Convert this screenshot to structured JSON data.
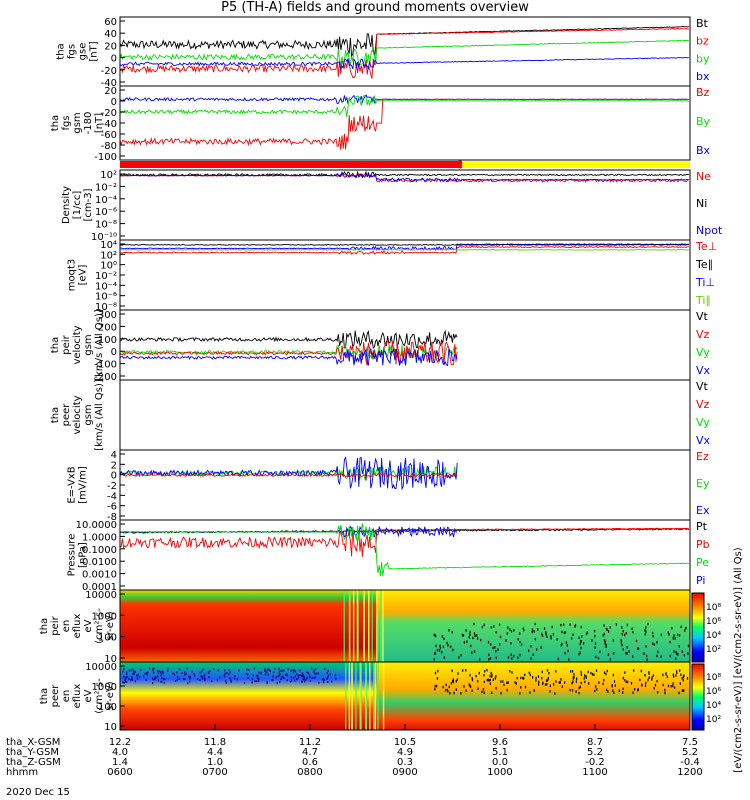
{
  "title": "P5 (TH-A) fields and ground moments overview",
  "colors": {
    "black": "#000000",
    "red": "#ff0000",
    "green": "#00e000",
    "blue": "#0000ff",
    "yellow": "#ffff00",
    "lightgreen": "#66cc00"
  },
  "panels": [
    {
      "id": "fgs_gse",
      "ylabel": [
        "tha",
        "fgs",
        "gse",
        "[nT]"
      ],
      "ticks": [
        "60",
        "40",
        "20",
        "0",
        "-20",
        "-40"
      ],
      "yrange": [
        -40,
        60
      ],
      "legend": [
        {
          "t": "Bt",
          "c": "black"
        },
        {
          "t": "bz",
          "c": "red"
        },
        {
          "t": "by",
          "c": "green"
        },
        {
          "t": "bx",
          "c": "blue"
        }
      ]
    },
    {
      "id": "fgs_gsm",
      "ylabel": [
        "tha",
        "fgs",
        "gsm",
        "-180",
        "[nT]"
      ],
      "ticks": [
        "20",
        "0",
        "-20",
        "-40",
        "-60",
        "-80",
        "-100"
      ],
      "yrange": [
        -100,
        20
      ],
      "legend": [
        {
          "t": "Bz",
          "c": "red"
        },
        {
          "t": "By",
          "c": "green"
        },
        {
          "t": "Bx",
          "c": "blue"
        }
      ]
    },
    {
      "id": "density",
      "ylabel": [
        "Density",
        "[1/cc]",
        "[cm-3]"
      ],
      "ticks": [
        "10²",
        "10⁻²",
        "10⁻⁴",
        "10⁻⁶",
        "10⁻⁸",
        "10⁻¹⁰"
      ],
      "yrange": [
        -10,
        2
      ],
      "legend": [
        {
          "t": "Ne",
          "c": "red"
        },
        {
          "t": "Ni",
          "c": "black"
        },
        {
          "t": "Npot",
          "c": "blue"
        }
      ]
    },
    {
      "id": "temp",
      "ylabel": [
        "moqt3",
        "[eV]"
      ],
      "ticks": [
        "10⁴",
        "10²",
        "10⁰",
        "10⁻²",
        "10⁻⁴",
        "10⁻⁶",
        "10⁻⁸"
      ],
      "yrange": [
        -8,
        4
      ],
      "legend": [
        {
          "t": "Te⊥",
          "c": "red"
        },
        {
          "t": "Te∥",
          "c": "black"
        },
        {
          "t": "Ti⊥",
          "c": "blue"
        },
        {
          "t": "Ti∥",
          "c": "lightgreen"
        }
      ]
    },
    {
      "id": "peir_vel",
      "ylabel": [
        "tha",
        "peir",
        "velocity",
        "gsm",
        "[km/s (All Qs)]"
      ],
      "ticks": [
        "300",
        "200",
        "100",
        "0",
        "-100",
        "-200"
      ],
      "yrange": [
        -200,
        300
      ],
      "legend": [
        {
          "t": "Vt",
          "c": "black"
        },
        {
          "t": "Vz",
          "c": "red"
        },
        {
          "t": "Vy",
          "c": "green"
        },
        {
          "t": "Vx",
          "c": "blue"
        }
      ]
    },
    {
      "id": "peer_vel",
      "ylabel": [
        "tha",
        "peer",
        "velocity",
        "gsm",
        "[km/s (All Qs)]"
      ],
      "ticks": [],
      "yrange": [
        0,
        1
      ],
      "legend": [
        {
          "t": "Vt",
          "c": "black"
        },
        {
          "t": "Vz",
          "c": "red"
        },
        {
          "t": "Vy",
          "c": "green"
        },
        {
          "t": "Vx",
          "c": "blue"
        }
      ]
    },
    {
      "id": "efield",
      "ylabel": [
        "E=-VxB",
        "[mV/m]"
      ],
      "ticks": [
        "4",
        "2",
        "0",
        "-2",
        "-4",
        "-6",
        "-8"
      ],
      "yrange": [
        -8,
        4
      ],
      "legend": [
        {
          "t": "Ez",
          "c": "red"
        },
        {
          "t": "Ey",
          "c": "green"
        },
        {
          "t": "Ex",
          "c": "blue"
        }
      ]
    },
    {
      "id": "pressure",
      "ylabel": [
        "Pressure",
        "[nPa]"
      ],
      "ticks": [
        "10.0000",
        "1.0000",
        "0.1000",
        "0.0100",
        "0.0010",
        "0.0001"
      ],
      "yrange": [
        -4,
        1
      ],
      "legend": [
        {
          "t": "Pt",
          "c": "black"
        },
        {
          "t": "Pb",
          "c": "red"
        },
        {
          "t": "Pe",
          "c": "green"
        },
        {
          "t": "Pi",
          "c": "blue"
        }
      ]
    },
    {
      "id": "peir_spec",
      "ylabel": [
        "tha",
        "peir",
        "en",
        "eflux",
        "eV",
        "(cm²-s-",
        "sr-eV)"
      ],
      "ticks": [
        "10000",
        "1000",
        "100",
        "10"
      ]
    },
    {
      "id": "peer_spec",
      "ylabel": [
        "tha",
        "peer",
        "en",
        "eflux",
        "eV",
        "(cm²-s-",
        "sr-eV)"
      ],
      "ticks": [
        "10000",
        "1000",
        "100",
        "10"
      ]
    }
  ],
  "colorbar": {
    "ticks": [
      "10⁸",
      "10⁶",
      "10⁴",
      "10²",
      "10⁸",
      "10⁶",
      "10⁴",
      "10²"
    ],
    "label": "[eV/(cm2-s-sr-eV)] [eV/(cm2-s-sr-eV)] (All Qs)"
  },
  "chart_data": {
    "type": "line",
    "title": "P5 (TH-A) fields and ground moments overview",
    "x_rows": [
      {
        "name": "tha_X-GSM",
        "values": [
          "12.2",
          "11.8",
          "11.2",
          "10.5",
          "9.6",
          "8.7",
          "7.5"
        ]
      },
      {
        "name": "tha_Y-GSM",
        "values": [
          "4.0",
          "4.4",
          "4.7",
          "4.9",
          "5.1",
          "5.2",
          "5.2"
        ]
      },
      {
        "name": "tha_Z-GSM",
        "values": [
          "1.4",
          "1.0",
          "0.6",
          "0.3",
          "0.0",
          "-0.2",
          "-0.4"
        ]
      },
      {
        "name": "hhmm",
        "values": [
          "0600",
          "0700",
          "0800",
          "0900",
          "1000",
          "1100",
          "1200"
        ]
      }
    ],
    "date": "2020 Dec 15",
    "series_fgs_gse": [
      {
        "name": "Bt",
        "x": [
          "0600",
          "0700",
          "0800",
          "0830",
          "0900",
          "1000",
          "1100",
          "1200"
        ],
        "y": [
          30,
          32,
          28,
          36,
          45,
          50,
          55,
          62
        ]
      },
      {
        "name": "bz",
        "x": [
          "0600",
          "0700",
          "0800",
          "0830",
          "0900",
          "1000",
          "1100",
          "1200"
        ],
        "y": [
          -15,
          -10,
          -12,
          -15,
          40,
          42,
          47,
          52
        ]
      },
      {
        "name": "by",
        "x": [
          "0600",
          "0700",
          "0800",
          "0830",
          "0900",
          "1000",
          "1100",
          "1200"
        ],
        "y": [
          0,
          -5,
          -2,
          5,
          10,
          15,
          20,
          28
        ]
      },
      {
        "name": "bx",
        "x": [
          "0600",
          "0700",
          "0800",
          "0830",
          "0900",
          "1000",
          "1100",
          "1200"
        ],
        "y": [
          -5,
          -8,
          -10,
          -5,
          -5,
          0,
          5,
          8
        ]
      }
    ]
  }
}
